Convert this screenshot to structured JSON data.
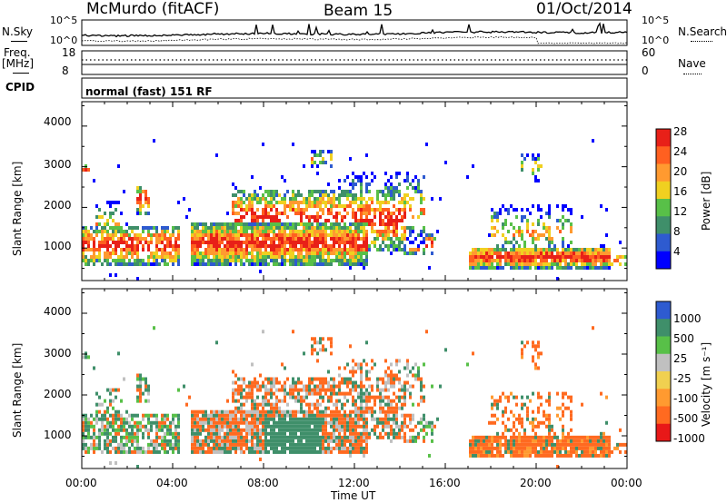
{
  "header": {
    "station": "McMurdo (fitACF)",
    "beam": "Beam 15",
    "date": "01/Oct/2014"
  },
  "noise_panel": {
    "left_label": "N.Sky",
    "right_label": "N.Search",
    "ticks": [
      "10^5",
      "10^0"
    ]
  },
  "freq_panel": {
    "left_label_1": "Freq.",
    "left_label_2": "[MHz]",
    "left_ticks": [
      "18",
      "8"
    ],
    "right_label": "Nave",
    "right_ticks": [
      "60",
      "0"
    ]
  },
  "cpid": {
    "label": "CPID",
    "mode": "normal (fast) 151 RF"
  },
  "colors": {
    "power": [
      "#0000ff",
      "#2e5bd0",
      "#3f8f6a",
      "#58c048",
      "#f0d020",
      "#ff9a30",
      "#ff6020",
      "#e82018"
    ],
    "velocity": [
      "#e81818",
      "#ff6a20",
      "#ff9a30",
      "#f0d050",
      "#c0c0c0",
      "#58c048",
      "#3f8f6a",
      "#2e5bd0"
    ]
  },
  "chart_data": [
    {
      "type": "heatmap",
      "title": "Power",
      "ylabel": "Slant Range [km]",
      "xlabel": "Time UT",
      "ylim": [
        200,
        4600
      ],
      "xlim_hours": [
        0,
        24
      ],
      "y_ticks": [
        "1000",
        "2000",
        "3000",
        "4000"
      ],
      "x_ticks": [
        "00:00",
        "04:00",
        "08:00",
        "12:00",
        "16:00",
        "20:00",
        "00:00"
      ],
      "colorbar": {
        "label": "Power [dB]",
        "ticks": [
          "4",
          "8",
          "12",
          "16",
          "20",
          "24",
          "28"
        ]
      }
    },
    {
      "type": "heatmap",
      "title": "Velocity",
      "ylabel": "Slant Range [km]",
      "xlabel": "Time UT",
      "ylim": [
        200,
        4600
      ],
      "xlim_hours": [
        0,
        24
      ],
      "y_ticks": [
        "1000",
        "2000",
        "3000",
        "4000"
      ],
      "x_ticks": [
        "00:00",
        "04:00",
        "08:00",
        "12:00",
        "16:00",
        "20:00",
        "00:00"
      ],
      "colorbar": {
        "label": "Velocity [m s⁻¹]",
        "ticks": [
          "1000",
          "500",
          "25",
          "-25",
          "-100",
          "-500",
          "-1000"
        ]
      }
    }
  ]
}
